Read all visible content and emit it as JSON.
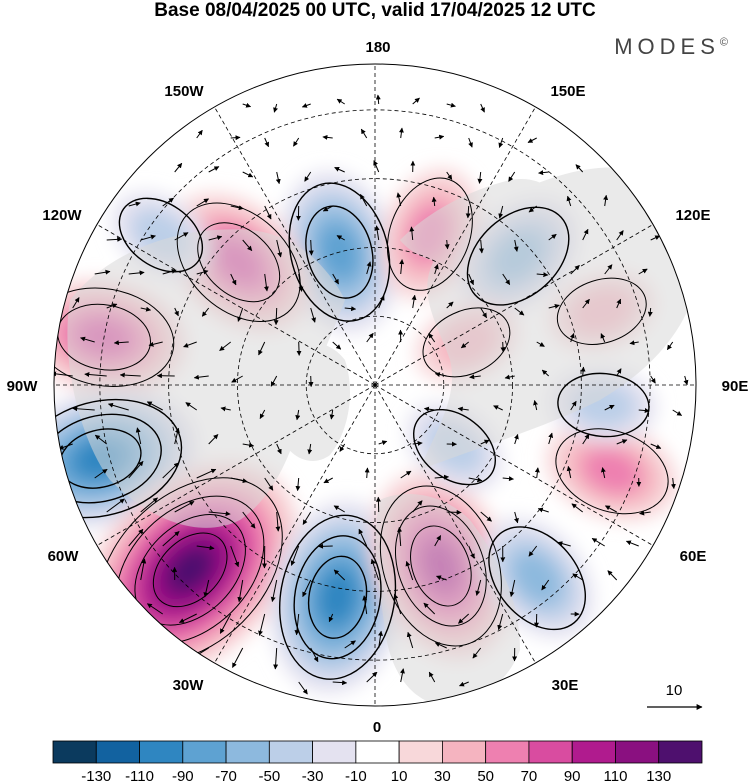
{
  "title": "Base 08/04/2025 00 UTC, valid 17/04/2025 12 UTC",
  "brand": "MODES",
  "brand_mark": "©",
  "longitude_labels": [
    {
      "id": "lon-180",
      "text": "180"
    },
    {
      "id": "lon-150e",
      "text": "150E"
    },
    {
      "id": "lon-120e",
      "text": "120E"
    },
    {
      "id": "lon-90e",
      "text": "90E"
    },
    {
      "id": "lon-60e",
      "text": "60E"
    },
    {
      "id": "lon-30e",
      "text": "30E"
    },
    {
      "id": "lon-0",
      "text": "0"
    },
    {
      "id": "lon-30w",
      "text": "30W"
    },
    {
      "id": "lon-60w",
      "text": "60W"
    },
    {
      "id": "lon-90w",
      "text": "90W"
    },
    {
      "id": "lon-120w",
      "text": "120W"
    },
    {
      "id": "lon-150w",
      "text": "150W"
    }
  ],
  "vector_reference": {
    "label": "10"
  },
  "colorbar": {
    "tick_labels": [
      "-130",
      "-110",
      "-90",
      "-70",
      "-50",
      "-30",
      "-10",
      "10",
      "30",
      "50",
      "70",
      "90",
      "110",
      "130"
    ],
    "bins": [
      {
        "color": "#0b3a5e"
      },
      {
        "color": "#1262a0"
      },
      {
        "color": "#2f86c1"
      },
      {
        "color": "#5ea2d2"
      },
      {
        "color": "#8db9de"
      },
      {
        "color": "#bccfe8"
      },
      {
        "color": "#e4e2f0"
      },
      {
        "color": "#ffffff"
      },
      {
        "color": "#f8d8da"
      },
      {
        "color": "#f5b4c0"
      },
      {
        "color": "#ee80b0"
      },
      {
        "color": "#d94ca0"
      },
      {
        "color": "#b01b8e"
      },
      {
        "color": "#8a1080"
      },
      {
        "color": "#4e106e"
      }
    ]
  },
  "anomaly_centers": [
    {
      "id": "anomaly-neg-n-pacific",
      "lon": -165,
      "lat": 60,
      "value": -70
    },
    {
      "id": "anomaly-pos-150e",
      "lon": 160,
      "lat": 55,
      "value": 50
    },
    {
      "id": "anomaly-neg-130e",
      "lon": 132,
      "lat": 48,
      "value": -50
    },
    {
      "id": "anomaly-pos-125w",
      "lon": -132,
      "lat": 50,
      "value": 70
    },
    {
      "id": "anomaly-neg-110w",
      "lon": -125,
      "lat": 33,
      "value": -30
    },
    {
      "id": "anomaly-pos-100w",
      "lon": -100,
      "lat": 30,
      "value": 70
    },
    {
      "id": "anomaly-neg-75w",
      "lon": -75,
      "lat": 28,
      "value": -90
    },
    {
      "id": "anomaly-pos-45w",
      "lon": -45,
      "lat": 33,
      "value": 130
    },
    {
      "id": "anomaly-neg-10w",
      "lon": -10,
      "lat": 43,
      "value": -90
    },
    {
      "id": "anomaly-pos-20e",
      "lon": 20,
      "lat": 48,
      "value": 90
    },
    {
      "id": "anomaly-neg-40e",
      "lon": 40,
      "lat": 35,
      "value": -50
    },
    {
      "id": "anomaly-pos-70e",
      "lon": 70,
      "lat": 35,
      "value": 50
    },
    {
      "id": "anomaly-neg-80e",
      "lon": 85,
      "lat": 40,
      "value": -30
    },
    {
      "id": "anomaly-pos-110e",
      "lon": 108,
      "lat": 38,
      "value": 30
    },
    {
      "id": "anomaly-pos-120e-arctic",
      "lon": 115,
      "lat": 68,
      "value": 30
    },
    {
      "id": "anomaly-neg-50e-arctic",
      "lon": 52,
      "lat": 68,
      "value": -30
    }
  ]
}
